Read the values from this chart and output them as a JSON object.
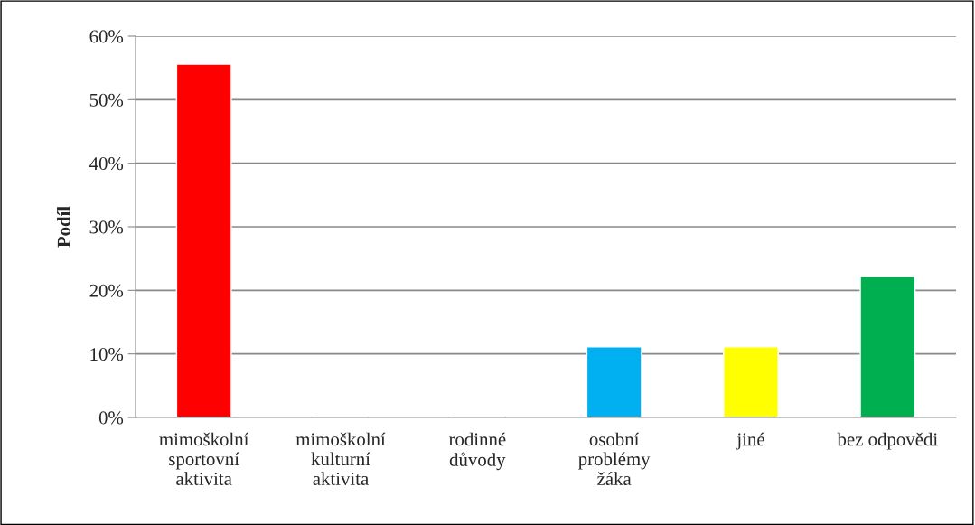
{
  "chart_data": {
    "type": "bar",
    "ylabel": "Podíl",
    "categories": [
      "mimoškolní\nsportovní\naktivita",
      "mimoškolní\nkulturní\naktivita",
      "rodinné\ndůvody",
      "osobní\nproblémy\nžáka",
      "jiné",
      "bez odpovědi"
    ],
    "values": [
      55.6,
      0,
      0,
      11.1,
      11.1,
      22.2
    ],
    "colors": [
      "#ff0000",
      null,
      null,
      "#00b0f0",
      "#ffff00",
      "#00b050"
    ],
    "ylim": [
      0,
      60
    ],
    "yticks": [
      {
        "value": 0,
        "label": "0%"
      },
      {
        "value": 10,
        "label": "10%"
      },
      {
        "value": 20,
        "label": "20%"
      },
      {
        "value": 30,
        "label": "30%"
      },
      {
        "value": 40,
        "label": "40%"
      },
      {
        "value": 50,
        "label": "50%"
      },
      {
        "value": 60,
        "label": "60%"
      }
    ],
    "grid": "y",
    "legend": false
  }
}
